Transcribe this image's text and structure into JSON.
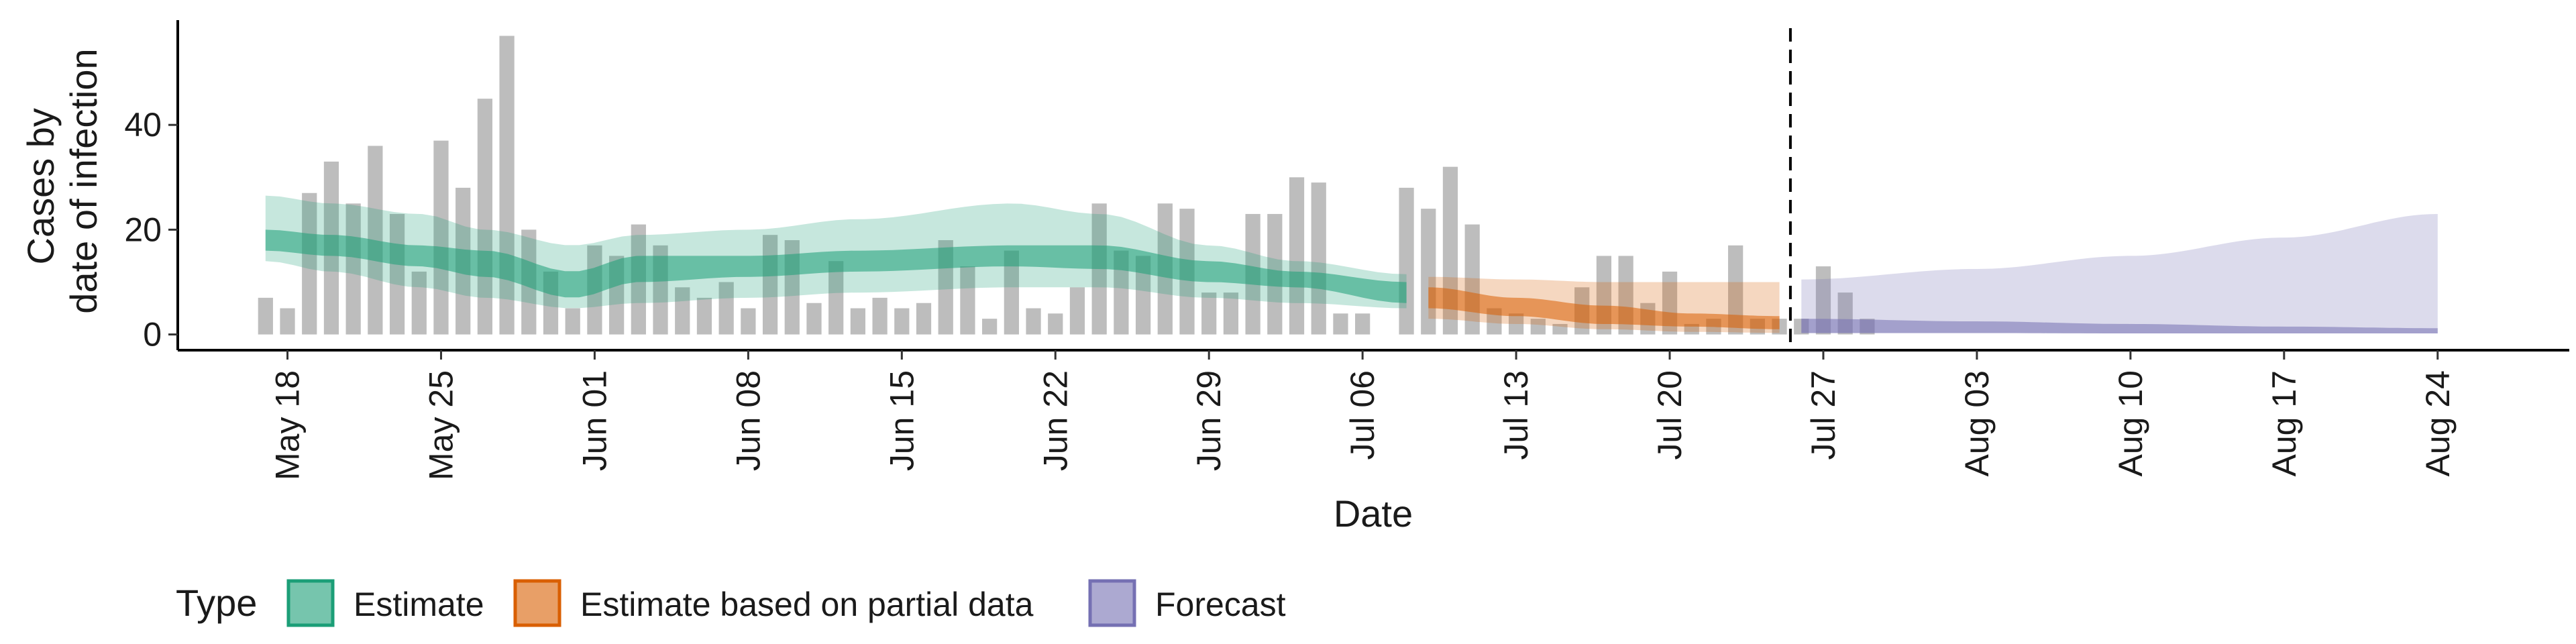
{
  "chart_data": {
    "type": "bar",
    "title": "",
    "xlabel": "Date",
    "ylabel_lines": [
      "Cases by",
      "date of infection"
    ],
    "ylim": [
      -3,
      60
    ],
    "yticks": [
      0,
      20,
      40
    ],
    "x_start": "2020-05-13",
    "x_end": "2020-08-30",
    "xticks": [
      {
        "date": "2020-05-18",
        "label": "May 18"
      },
      {
        "date": "2020-05-25",
        "label": "May 25"
      },
      {
        "date": "2020-06-01",
        "label": "Jun 01"
      },
      {
        "date": "2020-06-08",
        "label": "Jun 08"
      },
      {
        "date": "2020-06-15",
        "label": "Jun 15"
      },
      {
        "date": "2020-06-22",
        "label": "Jun 22"
      },
      {
        "date": "2020-06-29",
        "label": "Jun 29"
      },
      {
        "date": "2020-07-06",
        "label": "Jul 06"
      },
      {
        "date": "2020-07-13",
        "label": "Jul 13"
      },
      {
        "date": "2020-07-20",
        "label": "Jul 20"
      },
      {
        "date": "2020-07-27",
        "label": "Jul 27"
      },
      {
        "date": "2020-08-03",
        "label": "Aug 03"
      },
      {
        "date": "2020-08-10",
        "label": "Aug 10"
      },
      {
        "date": "2020-08-17",
        "label": "Aug 17"
      },
      {
        "date": "2020-08-24",
        "label": "Aug 24"
      }
    ],
    "vline_date": "2020-07-25",
    "bars": {
      "color": "#bdbdbd",
      "start_date": "2020-05-17",
      "values": [
        7,
        5,
        27,
        33,
        25,
        36,
        23,
        12,
        37,
        28,
        45,
        57,
        20,
        12,
        5,
        17,
        15,
        21,
        17,
        9,
        7,
        10,
        5,
        19,
        18,
        6,
        14,
        5,
        7,
        5,
        6,
        18,
        13,
        3,
        16,
        5,
        4,
        9,
        25,
        16,
        15,
        25,
        24,
        8,
        8,
        23,
        23,
        30,
        29,
        4,
        4,
        0,
        28,
        24,
        32,
        21,
        5,
        4,
        3,
        2,
        9,
        15,
        15,
        6,
        12,
        2,
        3,
        17,
        3,
        3,
        3,
        13,
        8,
        3
      ]
    },
    "series": [
      {
        "name": "Estimate",
        "color": "#1b9e77",
        "start_date": "2020-05-17",
        "end_date": "2020-07-08",
        "knots": [
          {
            "date": "2020-05-17",
            "median": 18,
            "inner_lo": 16,
            "inner_hi": 20,
            "outer_lo": 14,
            "outer_hi": 26.5
          },
          {
            "date": "2020-05-20",
            "median": 17,
            "inner_lo": 15,
            "inner_hi": 19,
            "outer_lo": 12,
            "outer_hi": 25
          },
          {
            "date": "2020-05-24",
            "median": 15,
            "inner_lo": 13,
            "inner_hi": 17,
            "outer_lo": 9,
            "outer_hi": 23
          },
          {
            "date": "2020-05-27",
            "median": 13.5,
            "inner_lo": 11,
            "inner_hi": 16,
            "outer_lo": 7,
            "outer_hi": 20
          },
          {
            "date": "2020-05-31",
            "median": 9,
            "inner_lo": 7,
            "inner_hi": 12,
            "outer_lo": 5,
            "outer_hi": 17
          },
          {
            "date": "2020-06-03",
            "median": 12,
            "inner_lo": 10,
            "inner_hi": 15,
            "outer_lo": 6,
            "outer_hi": 19
          },
          {
            "date": "2020-06-08",
            "median": 13,
            "inner_lo": 11,
            "inner_hi": 15,
            "outer_lo": 7,
            "outer_hi": 20
          },
          {
            "date": "2020-06-13",
            "median": 14,
            "inner_lo": 12,
            "inner_hi": 16,
            "outer_lo": 8,
            "outer_hi": 22
          },
          {
            "date": "2020-06-20",
            "median": 15,
            "inner_lo": 13,
            "inner_hi": 17,
            "outer_lo": 9,
            "outer_hi": 25
          },
          {
            "date": "2020-06-24",
            "median": 15,
            "inner_lo": 12.5,
            "inner_hi": 17,
            "outer_lo": 9,
            "outer_hi": 23
          },
          {
            "date": "2020-06-29",
            "median": 12,
            "inner_lo": 10,
            "inner_hi": 14,
            "outer_lo": 7,
            "outer_hi": 17
          },
          {
            "date": "2020-07-03",
            "median": 10.5,
            "inner_lo": 9,
            "inner_hi": 12,
            "outer_lo": 6,
            "outer_hi": 14
          },
          {
            "date": "2020-07-08",
            "median": 8,
            "inner_lo": 6,
            "inner_hi": 10,
            "outer_lo": 5,
            "outer_hi": 11.5
          }
        ]
      },
      {
        "name": "Estimate based on partial data",
        "color": "#d95f02",
        "start_date": "2020-07-09",
        "end_date": "2020-07-25",
        "knots": [
          {
            "date": "2020-07-09",
            "median": 7,
            "inner_lo": 5,
            "inner_hi": 9,
            "outer_lo": 3,
            "outer_hi": 11
          },
          {
            "date": "2020-07-13",
            "median": 5,
            "inner_lo": 3.5,
            "inner_hi": 7,
            "outer_lo": 2,
            "outer_hi": 10.5
          },
          {
            "date": "2020-07-17",
            "median": 3.5,
            "inner_lo": 2,
            "inner_hi": 5.5,
            "outer_lo": 1,
            "outer_hi": 10
          },
          {
            "date": "2020-07-21",
            "median": 2.5,
            "inner_lo": 1.5,
            "inner_hi": 4,
            "outer_lo": 0.5,
            "outer_hi": 10
          },
          {
            "date": "2020-07-25",
            "median": 2,
            "inner_lo": 1,
            "inner_hi": 3.5,
            "outer_lo": 0.3,
            "outer_hi": 10
          }
        ]
      },
      {
        "name": "Forecast",
        "color": "#7570b3",
        "start_date": "2020-07-26",
        "end_date": "2020-08-24",
        "knots": [
          {
            "date": "2020-07-26",
            "median": 1.5,
            "inner_lo": 0.3,
            "inner_hi": 3,
            "outer_lo": 0.2,
            "outer_hi": 10.5
          },
          {
            "date": "2020-08-03",
            "median": 1.2,
            "inner_lo": 0.3,
            "inner_hi": 2.5,
            "outer_lo": 0.2,
            "outer_hi": 12.5
          },
          {
            "date": "2020-08-10",
            "median": 1,
            "inner_lo": 0.2,
            "inner_hi": 2,
            "outer_lo": 0.2,
            "outer_hi": 15
          },
          {
            "date": "2020-08-17",
            "median": 0.8,
            "inner_lo": 0.2,
            "inner_hi": 1.5,
            "outer_lo": 0.2,
            "outer_hi": 18.5
          },
          {
            "date": "2020-08-24",
            "median": 0.6,
            "inner_lo": 0.2,
            "inner_hi": 1.2,
            "outer_lo": 0.2,
            "outer_hi": 23
          }
        ]
      }
    ],
    "legend": {
      "title": "Type",
      "placement": "bottom-left",
      "entries": [
        {
          "label": "Estimate",
          "color": "#1b9e77"
        },
        {
          "label": "Estimate based on partial data",
          "color": "#d95f02"
        },
        {
          "label": "Forecast",
          "color": "#7570b3"
        }
      ]
    },
    "grid": false
  }
}
